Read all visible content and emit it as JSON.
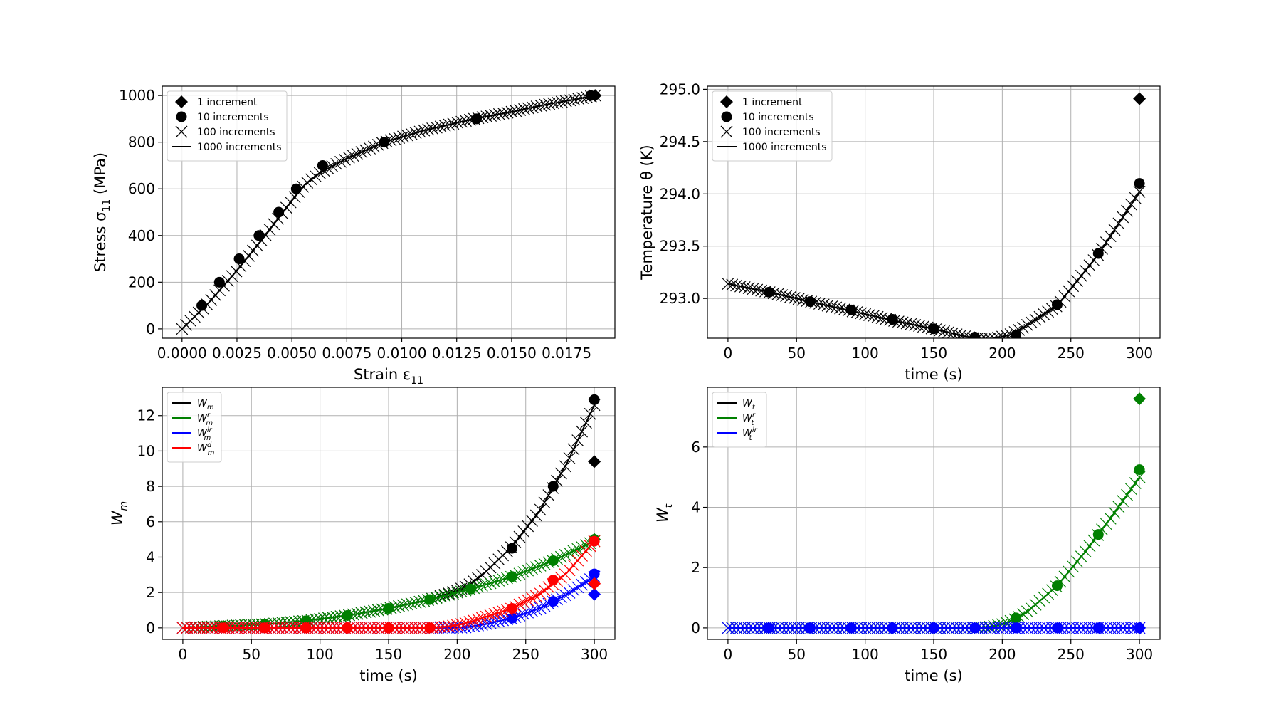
{
  "chart_data": [
    {
      "id": "stress-strain",
      "type": "line",
      "title": "",
      "xlabel": "Strain ε",
      "xlabel_sub": "11",
      "ylabel": "Stress σ",
      "ylabel_sub": "11",
      "ylabel_suffix": " (MPa)",
      "xlim": [
        -0.0009,
        0.0197
      ],
      "ylim": [
        -40,
        1040
      ],
      "xticks": [
        0,
        0.0025,
        0.005,
        0.0075,
        0.01,
        0.0125,
        0.015,
        0.0175
      ],
      "xtick_labels": [
        "0.0000",
        "0.0025",
        "0.0050",
        "0.0075",
        "0.0100",
        "0.0125",
        "0.0150",
        "0.0175"
      ],
      "yticks": [
        0,
        200,
        400,
        600,
        800,
        1000
      ],
      "ytick_labels": [
        "0",
        "200",
        "400",
        "600",
        "800",
        "1000"
      ],
      "grid": true,
      "legend_position": "top-left",
      "legend": [
        {
          "label": "1 increment",
          "marker": "diamond"
        },
        {
          "label": "10 increments",
          "marker": "circle"
        },
        {
          "label": "100 increments",
          "marker": "x"
        },
        {
          "label": "1000 increments",
          "marker": "line"
        }
      ],
      "series": [
        {
          "color": "#000000",
          "line": {
            "x": [
              0,
              0.0012,
              0.0025,
              0.0037,
              0.005,
              0.0056,
              0.0063,
              0.0075,
              0.0092,
              0.011,
              0.0133,
              0.015,
              0.0165,
              0.018,
              0.0188
            ],
            "y": [
              0,
              110,
              250,
              390,
              550,
              620,
              670,
              730,
              800,
              850,
              900,
              930,
              960,
              985,
              1000
            ]
          },
          "x100": {
            "x": [
              0,
              0.0012,
              0.0025,
              0.0037,
              0.005,
              0.0056,
              0.0063,
              0.0075,
              0.0092,
              0.011,
              0.0133,
              0.015,
              0.0165,
              0.018,
              0.0188
            ],
            "y": [
              0,
              110,
              250,
              390,
              550,
              620,
              670,
              730,
              800,
              850,
              900,
              930,
              960,
              985,
              1000
            ],
            "count": 100
          },
          "circles": {
            "x": [
              0.0009,
              0.0017,
              0.0026,
              0.0035,
              0.0044,
              0.0052,
              0.0064,
              0.0092,
              0.0134,
              0.0186
            ],
            "y": [
              100,
              200,
              300,
              400,
              500,
              600,
              700,
              800,
              900,
              1000
            ]
          },
          "diamonds": {
            "x": [
              0.0188
            ],
            "y": [
              1000
            ]
          }
        }
      ]
    },
    {
      "id": "temperature",
      "type": "line",
      "title": "",
      "xlabel": "time (s)",
      "ylabel": "Temperature θ (K)",
      "xlim": [
        -15,
        315
      ],
      "ylim": [
        292.62,
        295.03
      ],
      "xticks": [
        0,
        50,
        100,
        150,
        200,
        250,
        300
      ],
      "xtick_labels": [
        "0",
        "50",
        "100",
        "150",
        "200",
        "250",
        "300"
      ],
      "yticks": [
        293.0,
        293.5,
        294.0,
        294.5,
        295.0
      ],
      "ytick_labels": [
        "293.0",
        "293.5",
        "294.0",
        "294.5",
        "295.0"
      ],
      "grid": true,
      "legend_position": "top-left",
      "legend": [
        {
          "label": "1 increment",
          "marker": "diamond"
        },
        {
          "label": "10 increments",
          "marker": "circle"
        },
        {
          "label": "100 increments",
          "marker": "x"
        },
        {
          "label": "1000 increments",
          "marker": "line"
        }
      ],
      "series": [
        {
          "color": "#000000",
          "line": {
            "x": [
              0,
              30,
              60,
              90,
              120,
              150,
              175,
              185,
              195,
              205,
              215,
              240,
              270,
              300
            ],
            "y": [
              293.14,
              293.06,
              292.97,
              292.88,
              292.79,
              292.71,
              292.63,
              292.61,
              292.62,
              292.65,
              292.72,
              292.93,
              293.42,
              294.02
            ]
          },
          "x100": {
            "x": [
              0,
              30,
              60,
              90,
              120,
              150,
              175,
              185,
              195,
              205,
              215,
              240,
              270,
              300
            ],
            "y": [
              293.14,
              293.06,
              292.97,
              292.88,
              292.79,
              292.71,
              292.63,
              292.61,
              292.62,
              292.65,
              292.72,
              292.93,
              293.42,
              294.02
            ],
            "count": 100
          },
          "circles": {
            "x": [
              30,
              60,
              90,
              120,
              150,
              180,
              210,
              240,
              270,
              300
            ],
            "y": [
              293.06,
              292.97,
              292.89,
              292.8,
              292.71,
              292.63,
              292.65,
              292.94,
              293.43,
              294.1
            ]
          },
          "diamonds": {
            "x": [
              300
            ],
            "y": [
              294.91
            ]
          }
        }
      ]
    },
    {
      "id": "wm",
      "type": "line",
      "title": "",
      "xlabel": "time (s)",
      "ylabel": "W",
      "ylabel_sub": "m",
      "xlim": [
        -15,
        315
      ],
      "ylim": [
        -0.65,
        13.6
      ],
      "xticks": [
        0,
        50,
        100,
        150,
        200,
        250,
        300
      ],
      "xtick_labels": [
        "0",
        "50",
        "100",
        "150",
        "200",
        "250",
        "300"
      ],
      "yticks": [
        0,
        2,
        4,
        6,
        8,
        10,
        12
      ],
      "ytick_labels": [
        "0",
        "2",
        "4",
        "6",
        "8",
        "10",
        "12"
      ],
      "grid": true,
      "legend_position": "top-left",
      "legend": [
        {
          "label": "W",
          "sub": "m",
          "sup": "",
          "color": "#000000"
        },
        {
          "label": "W",
          "sub": "m",
          "sup": "r",
          "color": "#008000"
        },
        {
          "label": "W",
          "sub": "m",
          "sup": "ir",
          "color": "#0000ff"
        },
        {
          "label": "W",
          "sub": "m",
          "sup": "d",
          "color": "#ff0000"
        }
      ],
      "series": [
        {
          "color": "#000000",
          "line": {
            "x": [
              0,
              30,
              60,
              90,
              120,
              150,
              180,
              200,
              210,
              220,
              240,
              260,
              280,
              300
            ],
            "y": [
              0,
              0.1,
              0.2,
              0.4,
              0.7,
              1.1,
              1.6,
              2.1,
              2.5,
              3.1,
              4.6,
              6.6,
              9.3,
              12.6
            ]
          },
          "x100": {
            "x": [
              0,
              30,
              60,
              90,
              120,
              150,
              180,
              200,
              210,
              220,
              240,
              260,
              280,
              300
            ],
            "y": [
              0,
              0.1,
              0.2,
              0.4,
              0.7,
              1.1,
              1.6,
              2.1,
              2.5,
              3.1,
              4.6,
              6.6,
              9.3,
              12.6
            ],
            "count": 100
          },
          "circles": {
            "x": [
              240,
              270,
              300
            ],
            "y": [
              4.5,
              8.0,
              12.9
            ]
          },
          "diamonds": {
            "x": [
              300
            ],
            "y": [
              9.4
            ]
          }
        },
        {
          "color": "#008000",
          "line": {
            "x": [
              0,
              30,
              60,
              90,
              120,
              150,
              180,
              210,
              240,
              270,
              300
            ],
            "y": [
              0,
              0.1,
              0.2,
              0.4,
              0.7,
              1.1,
              1.6,
              2.2,
              2.9,
              3.8,
              4.9
            ]
          },
          "x100": {
            "x": [
              0,
              30,
              60,
              90,
              120,
              150,
              180,
              210,
              240,
              270,
              300
            ],
            "y": [
              0,
              0.1,
              0.2,
              0.4,
              0.7,
              1.1,
              1.6,
              2.2,
              2.9,
              3.8,
              4.9
            ],
            "count": 100
          },
          "circles": {
            "x": [
              30,
              60,
              90,
              120,
              150,
              180,
              210,
              240,
              270,
              300
            ],
            "y": [
              0.1,
              0.2,
              0.4,
              0.7,
              1.1,
              1.6,
              2.2,
              2.9,
              3.8,
              5.0
            ]
          },
          "diamonds": {
            "x": [
              300
            ],
            "y": [
              5.0
            ]
          }
        },
        {
          "color": "#0000ff",
          "line": {
            "x": [
              0,
              180,
              205,
              220,
              240,
              260,
              280,
              300
            ],
            "y": [
              0,
              0,
              0.02,
              0.2,
              0.55,
              1.1,
              1.9,
              2.9
            ]
          },
          "x100": {
            "x": [
              0,
              180,
              205,
              220,
              240,
              260,
              280,
              300
            ],
            "y": [
              0,
              0,
              0.02,
              0.2,
              0.55,
              1.1,
              1.9,
              2.9
            ],
            "count": 100
          },
          "circles": {
            "x": [
              240,
              270,
              300
            ],
            "y": [
              0.55,
              1.5,
              3.05
            ]
          },
          "diamonds": {
            "x": [
              300
            ],
            "y": [
              1.9
            ]
          }
        },
        {
          "color": "#ff0000",
          "line": {
            "x": [
              0,
              180,
              190,
              200,
              210,
              220,
              240,
              260,
              280,
              300
            ],
            "y": [
              0,
              0,
              0.05,
              0.15,
              0.35,
              0.6,
              1.1,
              1.9,
              3.1,
              4.9
            ]
          },
          "x100": {
            "x": [
              0,
              180,
              190,
              200,
              210,
              220,
              240,
              260,
              280,
              300
            ],
            "y": [
              0,
              0,
              0.05,
              0.15,
              0.35,
              0.6,
              1.1,
              1.9,
              3.1,
              4.9
            ],
            "count": 100
          },
          "circles": {
            "x": [
              30,
              60,
              90,
              120,
              150,
              180,
              240,
              270,
              300
            ],
            "y": [
              0,
              0,
              0,
              0,
              0,
              0,
              1.1,
              2.7,
              4.9
            ]
          },
          "diamonds": {
            "x": [
              300
            ],
            "y": [
              2.5
            ]
          }
        }
      ]
    },
    {
      "id": "wt",
      "type": "line",
      "title": "",
      "xlabel": "time (s)",
      "ylabel": "W",
      "ylabel_sub": "t",
      "xlim": [
        -15,
        315
      ],
      "ylim": [
        -0.38,
        7.98
      ],
      "xticks": [
        0,
        50,
        100,
        150,
        200,
        250,
        300
      ],
      "xtick_labels": [
        "0",
        "50",
        "100",
        "150",
        "200",
        "250",
        "300"
      ],
      "yticks": [
        0,
        2,
        4,
        6
      ],
      "ytick_labels": [
        "0",
        "2",
        "4",
        "6"
      ],
      "grid": true,
      "legend_position": "top-left",
      "legend": [
        {
          "label": "W",
          "sub": "t",
          "sup": "",
          "color": "#000000"
        },
        {
          "label": "W",
          "sub": "t",
          "sup": "r",
          "color": "#008000"
        },
        {
          "label": "W",
          "sub": "t",
          "sup": "ir",
          "color": "#0000ff"
        }
      ],
      "series": [
        {
          "color": "#008000",
          "line": {
            "x": [
              0,
              180,
              190,
              200,
              210,
              220,
              240,
              260,
              280,
              300
            ],
            "y": [
              0,
              0,
              0.03,
              0.12,
              0.3,
              0.6,
              1.4,
              2.5,
              3.7,
              5.0
            ]
          },
          "x100": {
            "x": [
              0,
              180,
              190,
              200,
              210,
              220,
              240,
              260,
              280,
              300
            ],
            "y": [
              0,
              0,
              0.03,
              0.12,
              0.3,
              0.6,
              1.4,
              2.5,
              3.7,
              5.0
            ],
            "count": 100
          },
          "circles": {
            "x": [
              210,
              240,
              270,
              300
            ],
            "y": [
              0.33,
              1.4,
              3.1,
              5.25
            ]
          },
          "diamonds": {
            "x": [
              300
            ],
            "y": [
              7.6
            ]
          }
        },
        {
          "color": "#0000ff",
          "line": {
            "x": [
              0,
              300
            ],
            "y": [
              0,
              0
            ]
          },
          "x100": {
            "x": [
              0,
              300
            ],
            "y": [
              0,
              0
            ],
            "count": 100
          },
          "circles": {
            "x": [
              30,
              60,
              90,
              120,
              150,
              180,
              210,
              240,
              270,
              300
            ],
            "y": [
              0,
              0,
              0,
              0,
              0,
              0,
              0,
              0,
              0,
              0
            ]
          },
          "diamonds": {
            "x": [
              300
            ],
            "y": [
              0
            ]
          }
        }
      ]
    }
  ]
}
